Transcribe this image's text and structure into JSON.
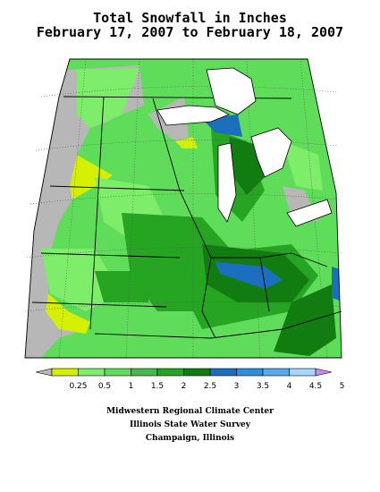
{
  "title": {
    "line1": "Total Snowfall in Inches",
    "line2": "February 17, 2007 to February 18, 2007"
  },
  "legend": {
    "labels": [
      "0.25",
      "0.5",
      "1",
      "1.5",
      "2",
      "2.5",
      "3",
      "3.5",
      "4",
      "4.5",
      "5"
    ],
    "colors": {
      "below": "#b7b7b7",
      "bins": [
        "#d4f000",
        "#7ded6a",
        "#5fdc5a",
        "#47b84a",
        "#25a521",
        "#117d11",
        "#1c6fbf",
        "#2f8fdc",
        "#57a9ee",
        "#a7d6fc"
      ],
      "above": "#cc88ee"
    }
  },
  "map": {
    "colors": {
      "water": "#ffffff",
      "no_data": "#b7b7b7",
      "grid": "#555555",
      "borders": "#000000"
    }
  },
  "credits": {
    "line1": "Midwestern Regional Climate Center",
    "line2": "Illinois State Water Survey",
    "line3": "Champaign, Illinois"
  }
}
